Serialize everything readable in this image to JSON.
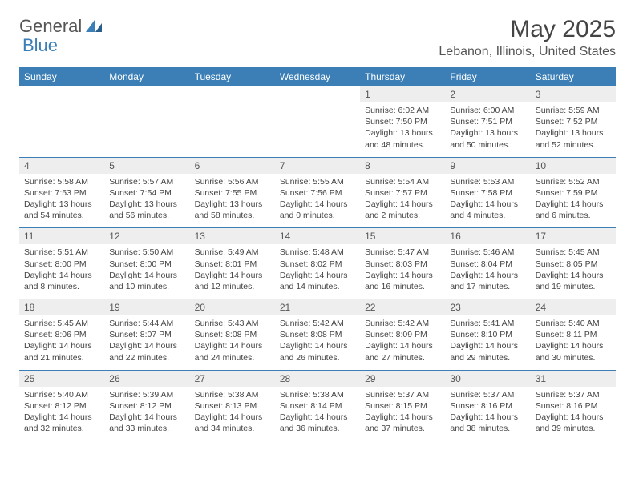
{
  "brand": {
    "part1": "General",
    "part2": "Blue"
  },
  "title": "May 2025",
  "location": "Lebanon, Illinois, United States",
  "colors": {
    "header_bg": "#3b7fb6",
    "header_text": "#ffffff",
    "num_bg": "#eeeeee",
    "border": "#3b7fb6",
    "body_text": "#444444"
  },
  "dayNames": [
    "Sunday",
    "Monday",
    "Tuesday",
    "Wednesday",
    "Thursday",
    "Friday",
    "Saturday"
  ],
  "weeks": [
    [
      null,
      null,
      null,
      null,
      {
        "n": "1",
        "sr": "Sunrise: 6:02 AM",
        "ss": "Sunset: 7:50 PM",
        "dl": "Daylight: 13 hours and 48 minutes."
      },
      {
        "n": "2",
        "sr": "Sunrise: 6:00 AM",
        "ss": "Sunset: 7:51 PM",
        "dl": "Daylight: 13 hours and 50 minutes."
      },
      {
        "n": "3",
        "sr": "Sunrise: 5:59 AM",
        "ss": "Sunset: 7:52 PM",
        "dl": "Daylight: 13 hours and 52 minutes."
      }
    ],
    [
      {
        "n": "4",
        "sr": "Sunrise: 5:58 AM",
        "ss": "Sunset: 7:53 PM",
        "dl": "Daylight: 13 hours and 54 minutes."
      },
      {
        "n": "5",
        "sr": "Sunrise: 5:57 AM",
        "ss": "Sunset: 7:54 PM",
        "dl": "Daylight: 13 hours and 56 minutes."
      },
      {
        "n": "6",
        "sr": "Sunrise: 5:56 AM",
        "ss": "Sunset: 7:55 PM",
        "dl": "Daylight: 13 hours and 58 minutes."
      },
      {
        "n": "7",
        "sr": "Sunrise: 5:55 AM",
        "ss": "Sunset: 7:56 PM",
        "dl": "Daylight: 14 hours and 0 minutes."
      },
      {
        "n": "8",
        "sr": "Sunrise: 5:54 AM",
        "ss": "Sunset: 7:57 PM",
        "dl": "Daylight: 14 hours and 2 minutes."
      },
      {
        "n": "9",
        "sr": "Sunrise: 5:53 AM",
        "ss": "Sunset: 7:58 PM",
        "dl": "Daylight: 14 hours and 4 minutes."
      },
      {
        "n": "10",
        "sr": "Sunrise: 5:52 AM",
        "ss": "Sunset: 7:59 PM",
        "dl": "Daylight: 14 hours and 6 minutes."
      }
    ],
    [
      {
        "n": "11",
        "sr": "Sunrise: 5:51 AM",
        "ss": "Sunset: 8:00 PM",
        "dl": "Daylight: 14 hours and 8 minutes."
      },
      {
        "n": "12",
        "sr": "Sunrise: 5:50 AM",
        "ss": "Sunset: 8:00 PM",
        "dl": "Daylight: 14 hours and 10 minutes."
      },
      {
        "n": "13",
        "sr": "Sunrise: 5:49 AM",
        "ss": "Sunset: 8:01 PM",
        "dl": "Daylight: 14 hours and 12 minutes."
      },
      {
        "n": "14",
        "sr": "Sunrise: 5:48 AM",
        "ss": "Sunset: 8:02 PM",
        "dl": "Daylight: 14 hours and 14 minutes."
      },
      {
        "n": "15",
        "sr": "Sunrise: 5:47 AM",
        "ss": "Sunset: 8:03 PM",
        "dl": "Daylight: 14 hours and 16 minutes."
      },
      {
        "n": "16",
        "sr": "Sunrise: 5:46 AM",
        "ss": "Sunset: 8:04 PM",
        "dl": "Daylight: 14 hours and 17 minutes."
      },
      {
        "n": "17",
        "sr": "Sunrise: 5:45 AM",
        "ss": "Sunset: 8:05 PM",
        "dl": "Daylight: 14 hours and 19 minutes."
      }
    ],
    [
      {
        "n": "18",
        "sr": "Sunrise: 5:45 AM",
        "ss": "Sunset: 8:06 PM",
        "dl": "Daylight: 14 hours and 21 minutes."
      },
      {
        "n": "19",
        "sr": "Sunrise: 5:44 AM",
        "ss": "Sunset: 8:07 PM",
        "dl": "Daylight: 14 hours and 22 minutes."
      },
      {
        "n": "20",
        "sr": "Sunrise: 5:43 AM",
        "ss": "Sunset: 8:08 PM",
        "dl": "Daylight: 14 hours and 24 minutes."
      },
      {
        "n": "21",
        "sr": "Sunrise: 5:42 AM",
        "ss": "Sunset: 8:08 PM",
        "dl": "Daylight: 14 hours and 26 minutes."
      },
      {
        "n": "22",
        "sr": "Sunrise: 5:42 AM",
        "ss": "Sunset: 8:09 PM",
        "dl": "Daylight: 14 hours and 27 minutes."
      },
      {
        "n": "23",
        "sr": "Sunrise: 5:41 AM",
        "ss": "Sunset: 8:10 PM",
        "dl": "Daylight: 14 hours and 29 minutes."
      },
      {
        "n": "24",
        "sr": "Sunrise: 5:40 AM",
        "ss": "Sunset: 8:11 PM",
        "dl": "Daylight: 14 hours and 30 minutes."
      }
    ],
    [
      {
        "n": "25",
        "sr": "Sunrise: 5:40 AM",
        "ss": "Sunset: 8:12 PM",
        "dl": "Daylight: 14 hours and 32 minutes."
      },
      {
        "n": "26",
        "sr": "Sunrise: 5:39 AM",
        "ss": "Sunset: 8:12 PM",
        "dl": "Daylight: 14 hours and 33 minutes."
      },
      {
        "n": "27",
        "sr": "Sunrise: 5:38 AM",
        "ss": "Sunset: 8:13 PM",
        "dl": "Daylight: 14 hours and 34 minutes."
      },
      {
        "n": "28",
        "sr": "Sunrise: 5:38 AM",
        "ss": "Sunset: 8:14 PM",
        "dl": "Daylight: 14 hours and 36 minutes."
      },
      {
        "n": "29",
        "sr": "Sunrise: 5:37 AM",
        "ss": "Sunset: 8:15 PM",
        "dl": "Daylight: 14 hours and 37 minutes."
      },
      {
        "n": "30",
        "sr": "Sunrise: 5:37 AM",
        "ss": "Sunset: 8:16 PM",
        "dl": "Daylight: 14 hours and 38 minutes."
      },
      {
        "n": "31",
        "sr": "Sunrise: 5:37 AM",
        "ss": "Sunset: 8:16 PM",
        "dl": "Daylight: 14 hours and 39 minutes."
      }
    ]
  ]
}
